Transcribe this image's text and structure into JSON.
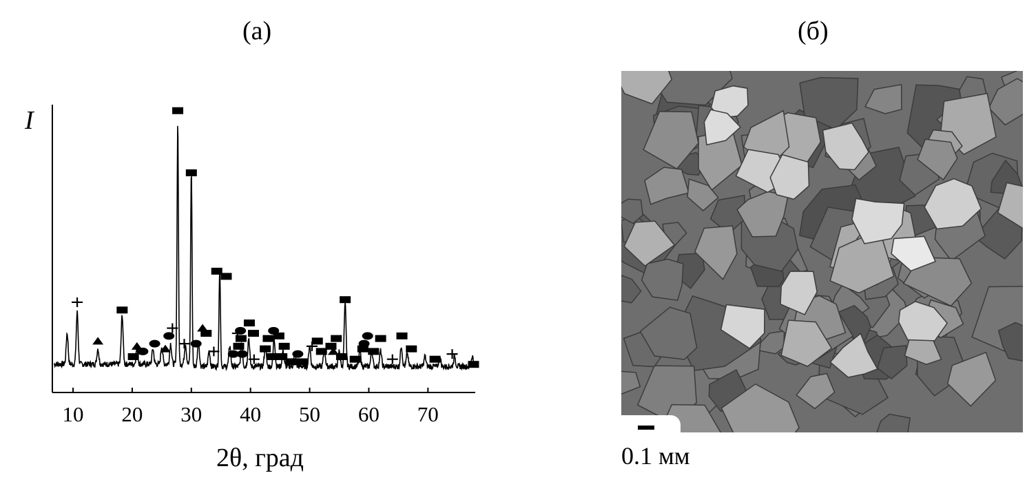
{
  "panels": {
    "a_label": "(а)",
    "b_label": "(б)"
  },
  "chart_data": {
    "type": "line",
    "title": "",
    "xlabel": "2θ, град",
    "ylabel": "I",
    "xlim": [
      6.5,
      78
    ],
    "ylim": [
      0,
      100
    ],
    "x_ticks": [
      10,
      20,
      30,
      40,
      50,
      60,
      70
    ],
    "x_tick_labels": [
      "10",
      "20",
      "30",
      "40",
      "50",
      "60",
      "70"
    ],
    "y_ticks": [],
    "grid": false,
    "series_color": "#000000",
    "peaks": [
      {
        "x": 9.0,
        "y": 12
      },
      {
        "x": 10.7,
        "y": 20
      },
      {
        "x": 14.2,
        "y": 6
      },
      {
        "x": 18.3,
        "y": 19
      },
      {
        "x": 20.8,
        "y": 6
      },
      {
        "x": 23.5,
        "y": 6
      },
      {
        "x": 25.0,
        "y": 7
      },
      {
        "x": 26.5,
        "y": 8
      },
      {
        "x": 27.7,
        "y": 93
      },
      {
        "x": 29.0,
        "y": 8
      },
      {
        "x": 30.0,
        "y": 75
      },
      {
        "x": 31.2,
        "y": 10
      },
      {
        "x": 33.0,
        "y": 6
      },
      {
        "x": 34.8,
        "y": 38
      },
      {
        "x": 36.5,
        "y": 8
      },
      {
        "x": 38.5,
        "y": 9
      },
      {
        "x": 39.7,
        "y": 11
      },
      {
        "x": 42.5,
        "y": 8
      },
      {
        "x": 44.0,
        "y": 11
      },
      {
        "x": 45.5,
        "y": 6
      },
      {
        "x": 47.5,
        "y": 5
      },
      {
        "x": 50.0,
        "y": 8
      },
      {
        "x": 52.5,
        "y": 7
      },
      {
        "x": 55.0,
        "y": 6
      },
      {
        "x": 56.0,
        "y": 24
      },
      {
        "x": 58.5,
        "y": 6
      },
      {
        "x": 60.5,
        "y": 6
      },
      {
        "x": 62.0,
        "y": 6
      },
      {
        "x": 65.5,
        "y": 8
      },
      {
        "x": 66.5,
        "y": 5
      },
      {
        "x": 69.5,
        "y": 4
      },
      {
        "x": 72.0,
        "y": 4
      },
      {
        "x": 74.5,
        "y": 4
      },
      {
        "x": 77.5,
        "y": 4
      }
    ],
    "phase_markers": [
      {
        "symbol": "plus",
        "x": 10.7,
        "y": 29
      },
      {
        "symbol": "triangle",
        "x": 14.2,
        "y": 14
      },
      {
        "symbol": "square",
        "x": 18.3,
        "y": 26
      },
      {
        "symbol": "triangle",
        "x": 20.8,
        "y": 12
      },
      {
        "symbol": "square",
        "x": 20.2,
        "y": 8
      },
      {
        "symbol": "ellipse",
        "x": 21.8,
        "y": 10
      },
      {
        "symbol": "ellipse",
        "x": 23.8,
        "y": 13
      },
      {
        "symbol": "triangle",
        "x": 25.6,
        "y": 11
      },
      {
        "symbol": "ellipse",
        "x": 26.2,
        "y": 16
      },
      {
        "symbol": "plus",
        "x": 26.8,
        "y": 19
      },
      {
        "symbol": "square",
        "x": 27.7,
        "y": 103
      },
      {
        "symbol": "plus",
        "x": 28.8,
        "y": 13
      },
      {
        "symbol": "ellipse",
        "x": 30.8,
        "y": 13
      },
      {
        "symbol": "square",
        "x": 30.0,
        "y": 79
      },
      {
        "symbol": "triangle",
        "x": 31.9,
        "y": 19
      },
      {
        "symbol": "square",
        "x": 32.5,
        "y": 17
      },
      {
        "symbol": "plus",
        "x": 33.8,
        "y": 10
      },
      {
        "symbol": "square",
        "x": 34.3,
        "y": 41
      },
      {
        "symbol": "square",
        "x": 35.9,
        "y": 39
      },
      {
        "symbol": "plus",
        "x": 37.8,
        "y": 17
      },
      {
        "symbol": "ellipse",
        "x": 38.3,
        "y": 18
      },
      {
        "symbol": "square",
        "x": 38.4,
        "y": 15
      },
      {
        "symbol": "square",
        "x": 38.0,
        "y": 12
      },
      {
        "symbol": "ellipse",
        "x": 37.1,
        "y": 9
      },
      {
        "symbol": "ellipse",
        "x": 38.6,
        "y": 9
      },
      {
        "symbol": "plus",
        "x": 40.6,
        "y": 7
      },
      {
        "symbol": "square",
        "x": 39.8,
        "y": 21
      },
      {
        "symbol": "square",
        "x": 40.5,
        "y": 17
      },
      {
        "symbol": "square",
        "x": 43.0,
        "y": 15
      },
      {
        "symbol": "ellipse",
        "x": 43.9,
        "y": 18
      },
      {
        "symbol": "square",
        "x": 44.8,
        "y": 16
      },
      {
        "symbol": "square",
        "x": 42.5,
        "y": 11
      },
      {
        "symbol": "square",
        "x": 43.6,
        "y": 8
      },
      {
        "symbol": "square",
        "x": 45.7,
        "y": 12
      },
      {
        "symbol": "square",
        "x": 45.3,
        "y": 8
      },
      {
        "symbol": "square",
        "x": 46.8,
        "y": 6
      },
      {
        "symbol": "ellipse",
        "x": 48.0,
        "y": 9
      },
      {
        "symbol": "square",
        "x": 48.7,
        "y": 6
      },
      {
        "symbol": "plus",
        "x": 50.4,
        "y": 12
      },
      {
        "symbol": "square",
        "x": 51.3,
        "y": 14
      },
      {
        "symbol": "square",
        "x": 52.0,
        "y": 10
      },
      {
        "symbol": "square",
        "x": 53.6,
        "y": 12
      },
      {
        "symbol": "triangle",
        "x": 54.0,
        "y": 10
      },
      {
        "symbol": "square",
        "x": 54.5,
        "y": 15
      },
      {
        "symbol": "square",
        "x": 55.4,
        "y": 8
      },
      {
        "symbol": "square",
        "x": 56.0,
        "y": 30
      },
      {
        "symbol": "square",
        "x": 57.7,
        "y": 7
      },
      {
        "symbol": "square",
        "x": 59.0,
        "y": 11
      },
      {
        "symbol": "ellipse",
        "x": 59.2,
        "y": 13
      },
      {
        "symbol": "ellipse",
        "x": 59.8,
        "y": 16
      },
      {
        "symbol": "square",
        "x": 60.8,
        "y": 10
      },
      {
        "symbol": "square",
        "x": 62.0,
        "y": 15
      },
      {
        "symbol": "plus",
        "x": 64.0,
        "y": 7
      },
      {
        "symbol": "square",
        "x": 65.6,
        "y": 16
      },
      {
        "symbol": "square",
        "x": 67.2,
        "y": 11
      },
      {
        "symbol": "square",
        "x": 71.2,
        "y": 7
      },
      {
        "symbol": "plus",
        "x": 74.1,
        "y": 9
      },
      {
        "symbol": "square",
        "x": 77.7,
        "y": 5
      }
    ]
  },
  "micrograph": {
    "scale_label": "0.1 мм",
    "background_color": "#6e6e6e"
  }
}
